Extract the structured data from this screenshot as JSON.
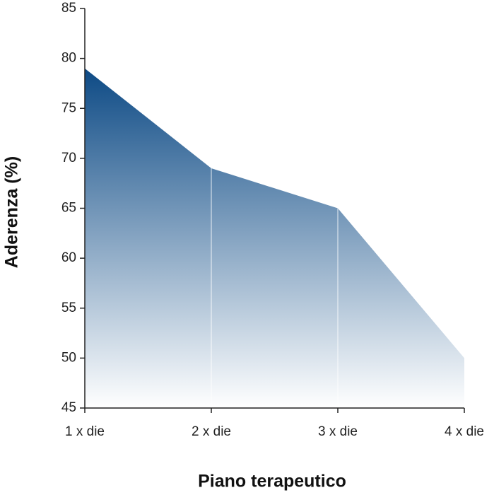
{
  "chart_data": {
    "type": "area",
    "x_label": "Piano terapeutico",
    "y_label": "Aderenza (%)",
    "categories": [
      "1 x die",
      "2 x die",
      "3 x die",
      "4 x die"
    ],
    "values": [
      79,
      69,
      65,
      50
    ],
    "color": "#0d4a85",
    "ylim": [
      45,
      85
    ],
    "yticks": [
      45,
      50,
      55,
      60,
      65,
      70,
      75,
      80,
      85
    ],
    "grid": false
  }
}
